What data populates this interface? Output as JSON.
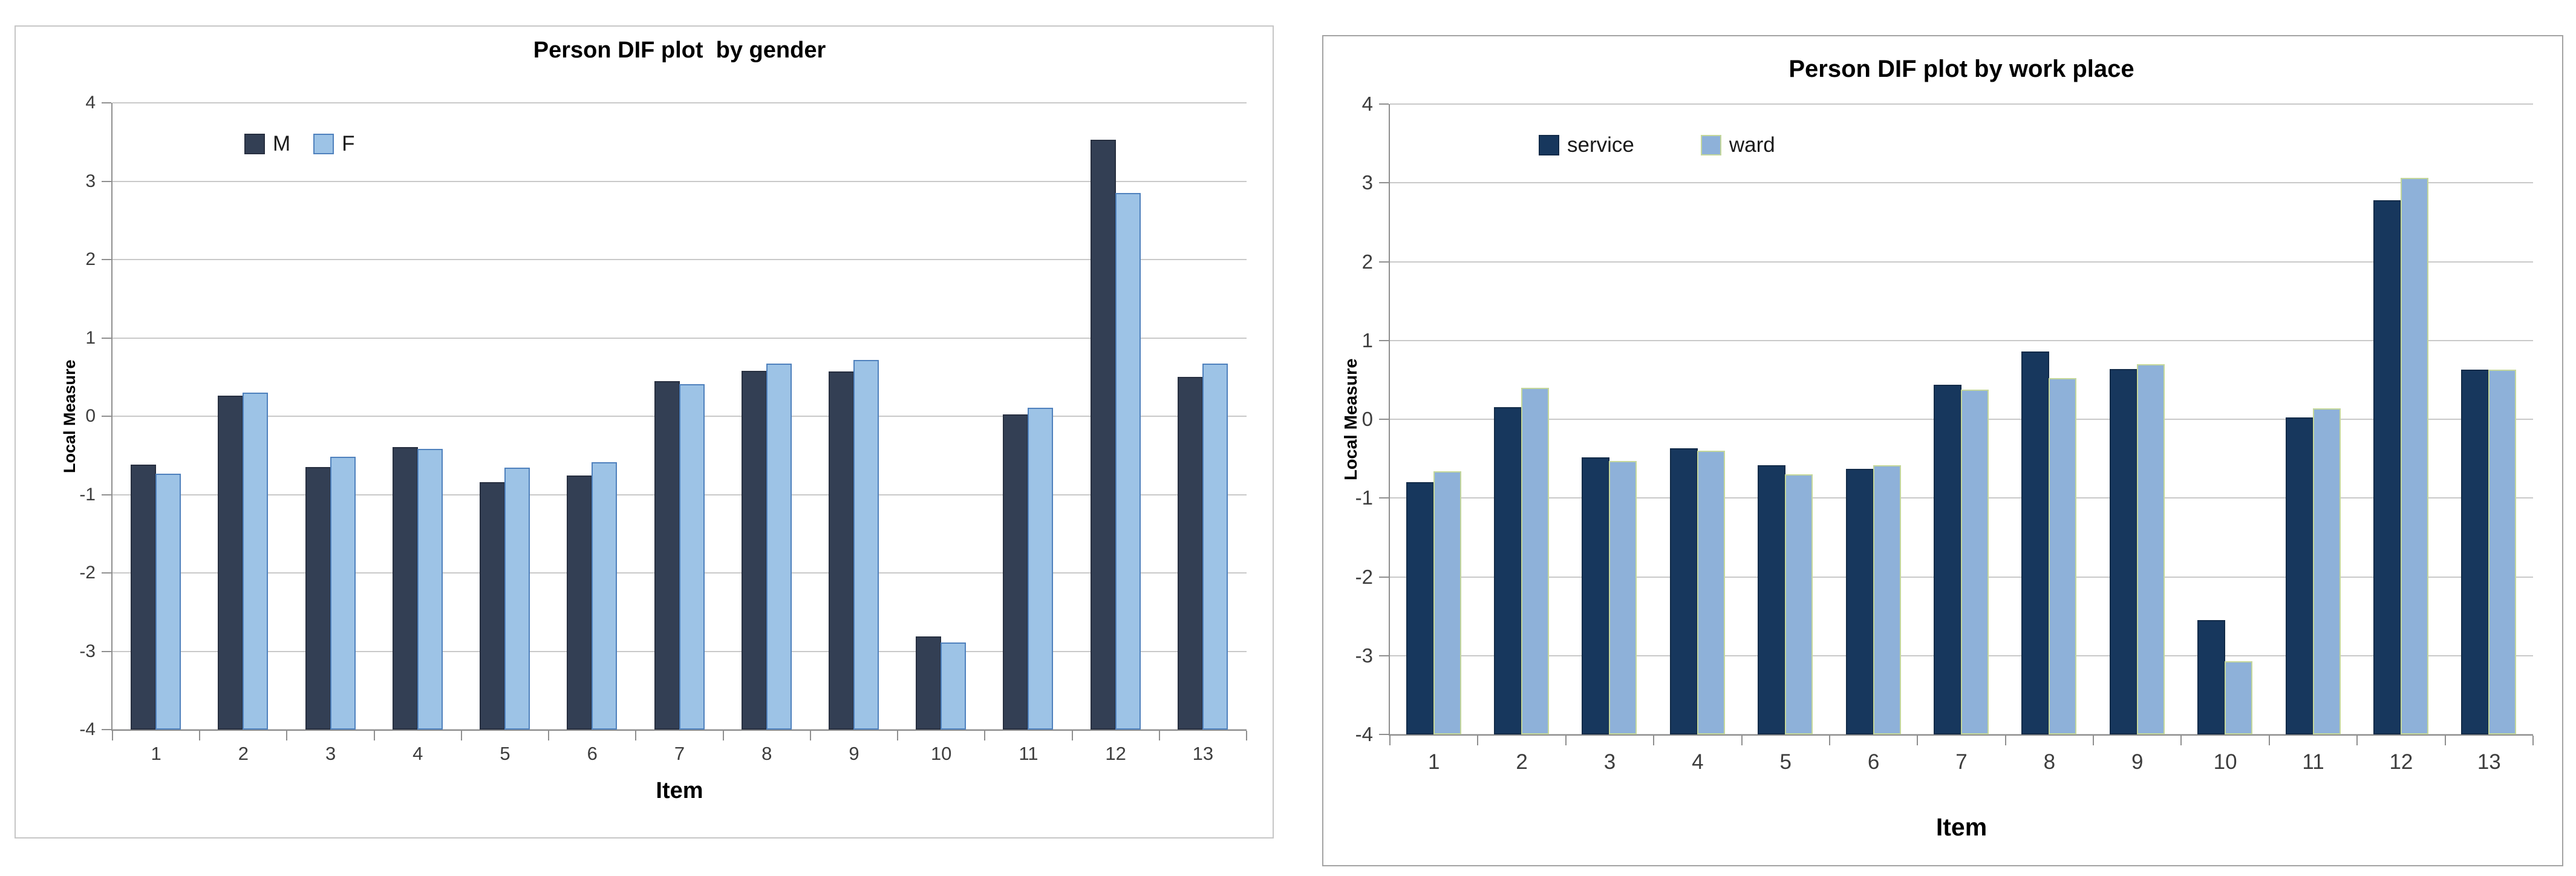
{
  "page": {
    "background": "#FFFFFF"
  },
  "chart_data": [
    {
      "type": "bar",
      "title": "Person DIF plot  by gender",
      "xlabel": "Item",
      "ylabel": "Local Measure",
      "ylim": [
        -4,
        4
      ],
      "y_ticks": [
        4,
        3,
        2,
        1,
        0,
        -1,
        -2,
        -3,
        -4
      ],
      "grid": true,
      "legend_position": "inside-top-left",
      "categories": [
        "1",
        "2",
        "3",
        "4",
        "5",
        "6",
        "7",
        "8",
        "9",
        "10",
        "11",
        "12",
        "13"
      ],
      "series": [
        {
          "name": "M",
          "fill": "#333F54",
          "border": "#272F40",
          "values": [
            -0.62,
            0.26,
            -0.65,
            -0.39,
            -0.84,
            -0.76,
            0.45,
            0.58,
            0.57,
            -2.81,
            0.02,
            3.53,
            0.5
          ]
        },
        {
          "name": "F",
          "fill": "#9DC3E6",
          "border": "#4F81BD",
          "values": [
            -0.73,
            0.3,
            -0.52,
            -0.42,
            -0.66,
            -0.59,
            0.41,
            0.67,
            0.72,
            -2.89,
            0.11,
            2.85,
            0.67
          ]
        }
      ],
      "colors": {
        "gridline": "#C9C9C9",
        "axis": "#8F8F8F",
        "tick_label": "#3D3D3D",
        "title": "#000000"
      }
    },
    {
      "type": "bar",
      "title": "Person DIF plot by work place",
      "xlabel": "Item",
      "ylabel": "Local Measure",
      "ylim": [
        -4,
        4
      ],
      "y_ticks": [
        4,
        3,
        2,
        1,
        0,
        -1,
        -2,
        -3,
        -4
      ],
      "grid": true,
      "legend_position": "inside-top-left",
      "categories": [
        "1",
        "2",
        "3",
        "4",
        "5",
        "6",
        "7",
        "8",
        "9",
        "10",
        "11",
        "12",
        "13"
      ],
      "series": [
        {
          "name": "service",
          "fill": "#17375D",
          "border": "#122B49",
          "values": [
            -0.8,
            0.15,
            -0.48,
            -0.37,
            -0.58,
            -0.63,
            0.44,
            0.86,
            0.64,
            -2.55,
            0.02,
            2.78,
            0.63
          ]
        },
        {
          "name": "ward",
          "fill": "#8EB1D9",
          "border": "#C4D79B",
          "values": [
            -0.66,
            0.4,
            -0.53,
            -0.4,
            -0.7,
            -0.58,
            0.38,
            0.52,
            0.7,
            -3.07,
            0.14,
            3.06,
            0.63
          ]
        }
      ],
      "colors": {
        "gridline": "#C9C9C9",
        "axis": "#8F8F8F",
        "tick_label": "#3D3D3D",
        "title": "#000000"
      }
    }
  ]
}
